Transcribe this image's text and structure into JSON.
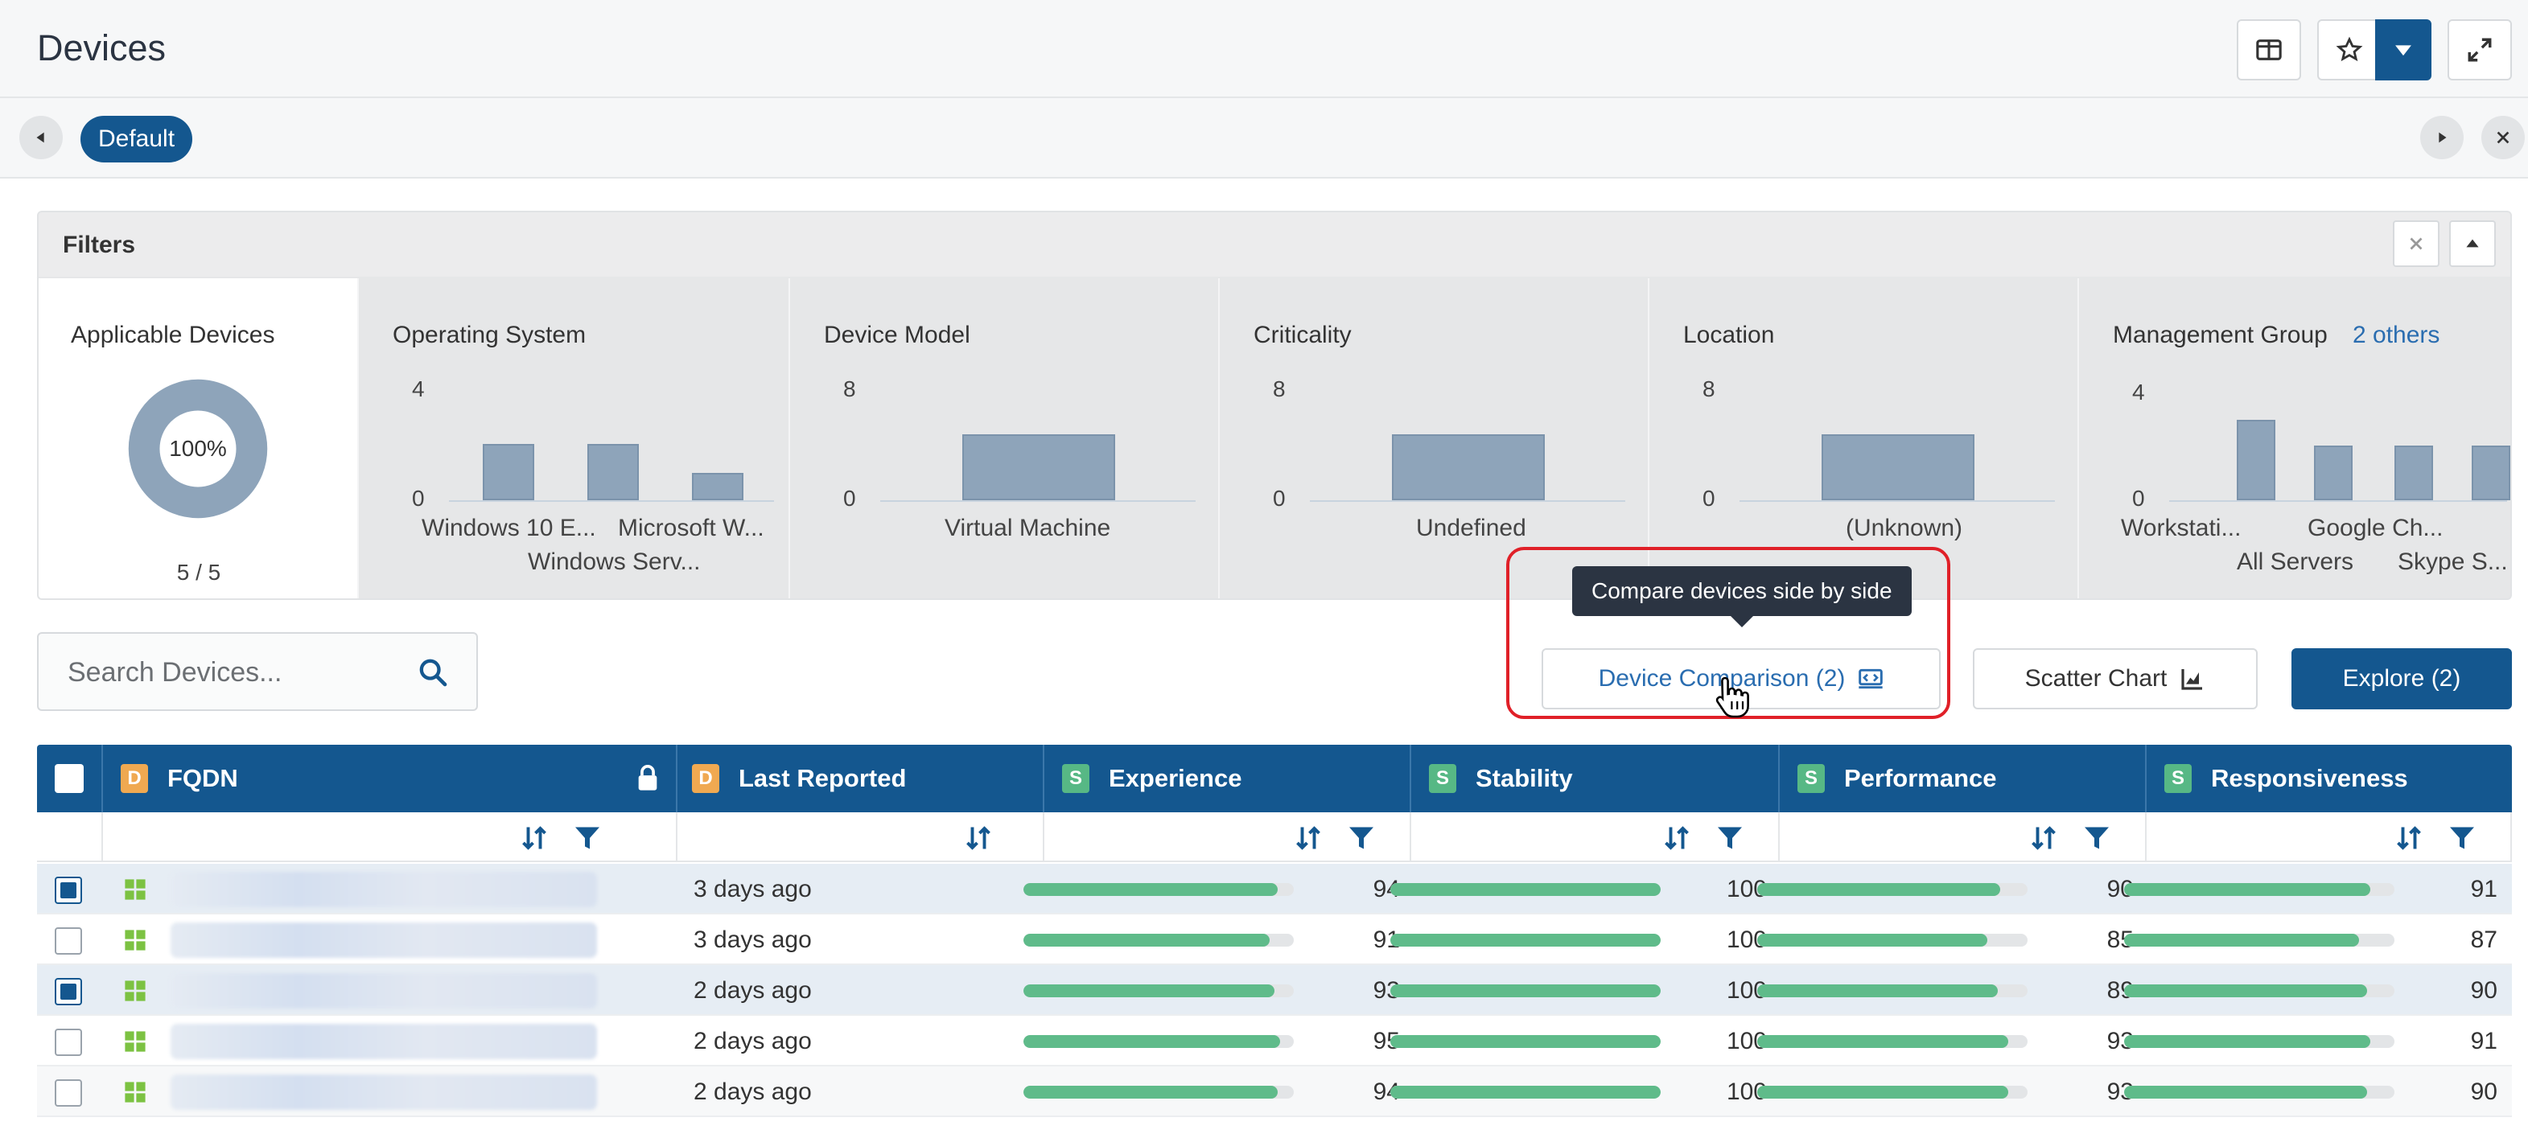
{
  "header": {
    "title": "Devices"
  },
  "tabs": {
    "active": "Default"
  },
  "filters": {
    "title": "Filters",
    "applicable": {
      "title": "Applicable Devices",
      "percent": "100%",
      "count": "5 / 5",
      "fraction": 1.0
    },
    "operating_system": {
      "title": "Operating System",
      "ymax": "4",
      "ymin": "0",
      "labels": [
        "Windows 10 E...",
        "Microsoft W...",
        "Windows Serv..."
      ]
    },
    "device_model": {
      "title": "Device Model",
      "ymax": "8",
      "ymin": "0",
      "labels": [
        "Virtual Machine"
      ]
    },
    "criticality": {
      "title": "Criticality",
      "ymax": "8",
      "ymin": "0",
      "labels": [
        "Undefined"
      ]
    },
    "location": {
      "title": "Location",
      "ymax": "8",
      "ymin": "0",
      "labels": [
        "(Unknown)"
      ]
    },
    "management_group": {
      "title": "Management Group",
      "others": "2 others",
      "ymax": "4",
      "ymin": "0",
      "labels": [
        "Workstati...",
        "Google Ch...",
        "All Servers",
        "Skype S..."
      ]
    }
  },
  "chart_data": [
    {
      "type": "bar",
      "title": "Operating System",
      "categories": [
        "Windows 10 E...",
        "Windows Serv...",
        "Microsoft W..."
      ],
      "values": [
        2,
        2,
        1
      ],
      "ylim": [
        0,
        4
      ]
    },
    {
      "type": "bar",
      "title": "Device Model",
      "categories": [
        "Virtual Machine"
      ],
      "values": [
        5
      ],
      "ylim": [
        0,
        8
      ]
    },
    {
      "type": "bar",
      "title": "Criticality",
      "categories": [
        "Undefined"
      ],
      "values": [
        5
      ],
      "ylim": [
        0,
        8
      ]
    },
    {
      "type": "bar",
      "title": "Location",
      "categories": [
        "(Unknown)"
      ],
      "values": [
        5
      ],
      "ylim": [
        0,
        8
      ]
    },
    {
      "type": "bar",
      "title": "Management Group",
      "categories": [
        "Workstati...",
        "All Servers",
        "Google Ch...",
        "Skype S..."
      ],
      "values": [
        3,
        2,
        2,
        2
      ],
      "ylim": [
        0,
        4
      ]
    }
  ],
  "search": {
    "placeholder": "Search Devices..."
  },
  "actions": {
    "tooltip": "Compare devices side by side",
    "compare": "Device Comparison (2)",
    "scatter": "Scatter Chart",
    "explore": "Explore (2)"
  },
  "table": {
    "columns": {
      "fqdn": {
        "badge": "D",
        "label": "FQDN"
      },
      "last_reported": {
        "badge": "D",
        "label": "Last Reported"
      },
      "experience": {
        "badge": "S",
        "label": "Experience"
      },
      "stability": {
        "badge": "S",
        "label": "Stability"
      },
      "performance": {
        "badge": "S",
        "label": "Performance"
      },
      "responsiveness": {
        "badge": "S",
        "label": "Responsiveness"
      }
    },
    "rows": [
      {
        "selected": true,
        "last_reported": "3 days ago",
        "experience": 94,
        "stability": 100,
        "performance": 90,
        "responsiveness": 91
      },
      {
        "selected": false,
        "last_reported": "3 days ago",
        "experience": 91,
        "stability": 100,
        "performance": 85,
        "responsiveness": 87
      },
      {
        "selected": true,
        "last_reported": "2 days ago",
        "experience": 93,
        "stability": 100,
        "performance": 89,
        "responsiveness": 90
      },
      {
        "selected": false,
        "last_reported": "2 days ago",
        "experience": 95,
        "stability": 100,
        "performance": 93,
        "responsiveness": 91
      },
      {
        "selected": false,
        "last_reported": "2 days ago",
        "experience": 94,
        "stability": 100,
        "performance": 93,
        "responsiveness": 90
      }
    ]
  },
  "colors": {
    "primary": "#14578f",
    "score_bar": "#5fbb8a",
    "chart_bar": "#8ea4ba",
    "highlight": "#e02028"
  }
}
